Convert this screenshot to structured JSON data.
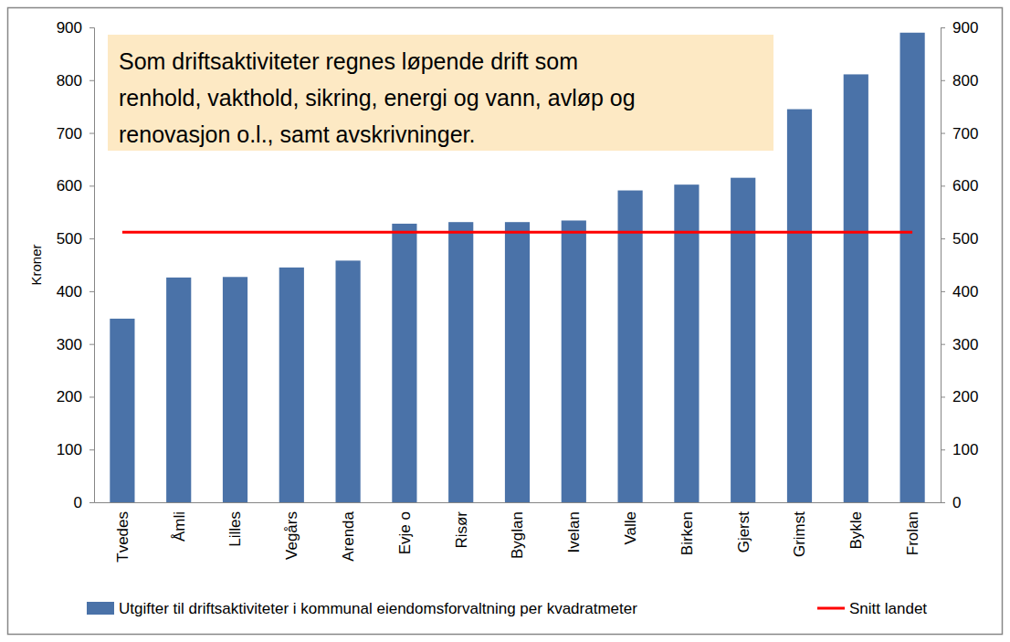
{
  "chart_data": {
    "type": "bar",
    "annotation": [
      "Som driftsaktiviteter regnes løpende drift som",
      "renhold, vakthold, sikring, energi og vann, avløp og",
      "renovasjon o.l., samt avskrivninger."
    ],
    "y_label": "Kroner",
    "categories": [
      "Tvedes",
      "Åmli",
      "Lilles",
      "Vegårs",
      "Arenda",
      "Evje o",
      "Risør",
      "Byglan",
      "Ivelan",
      "Valle",
      "Birken",
      "Gjerst",
      "Grimst",
      "Bykle",
      "Frolan"
    ],
    "series": [
      {
        "name": "Utgifter til driftsaktiviteter i kommunal eiendomsforvaltning per kvadratmeter",
        "type": "bar",
        "color": "#4a72a8",
        "values": [
          348,
          426,
          427,
          445,
          458,
          528,
          531,
          531,
          534,
          591,
          602,
          615,
          745,
          811,
          890
        ]
      },
      {
        "name": "Snitt landet",
        "type": "line",
        "color": "#ff0000",
        "values": [
          512,
          512,
          512,
          512,
          512,
          512,
          512,
          512,
          512,
          512,
          512,
          512,
          512,
          512,
          512
        ]
      }
    ],
    "ylim": [
      0,
      900
    ],
    "yticks": [
      0,
      100,
      200,
      300,
      400,
      500,
      600,
      700,
      800,
      900
    ],
    "y2lim": [
      0,
      900
    ],
    "y2ticks": [
      0,
      100,
      200,
      300,
      400,
      500,
      600,
      700,
      800,
      900
    ],
    "grid": false,
    "legend": "bottom"
  }
}
